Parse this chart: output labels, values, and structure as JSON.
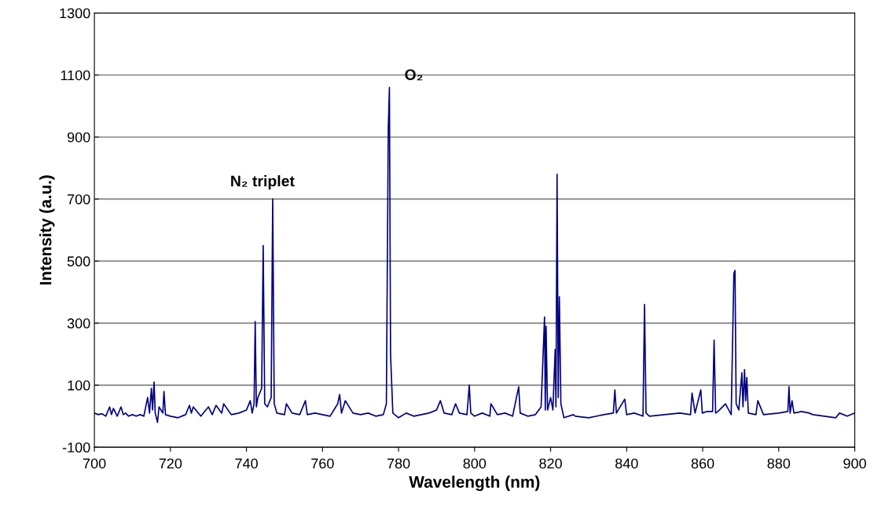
{
  "chart_data": {
    "type": "line",
    "xlabel": "Wavelength (nm)",
    "ylabel": "Intensity (a.u.)",
    "xlim": [
      700,
      900
    ],
    "xticks": [
      700,
      720,
      740,
      760,
      780,
      800,
      820,
      840,
      860,
      880,
      900
    ],
    "ylim": [
      -100,
      1300
    ],
    "yticks": [
      -100,
      100,
      300,
      500,
      700,
      900,
      1100,
      1300
    ],
    "grid": "y",
    "legend": false,
    "marker": "none",
    "line_style": "solid",
    "annotations": [
      "N₂ triplet",
      "O₂"
    ],
    "series": [
      {
        "color": "#000080",
        "x": [
          700,
          701,
          702,
          703,
          704,
          704.5,
          705,
          706,
          707,
          707.6,
          708.2,
          709,
          710,
          711,
          712,
          713,
          714,
          714.5,
          715,
          715.3,
          715.7,
          716,
          716.6,
          717,
          718,
          718.3,
          718.7,
          720,
          722,
          724,
          725,
          725.5,
          726,
          728,
          730,
          731,
          732,
          733.5,
          734,
          736,
          738,
          740,
          741,
          741.5,
          742,
          742.3,
          742.6,
          743,
          744,
          744.4,
          744.8,
          745.5,
          746.5,
          746.9,
          747.3,
          748,
          750,
          750.5,
          752,
          754,
          755.5,
          756,
          758,
          760,
          762,
          764,
          764.5,
          765,
          766,
          768,
          770,
          772,
          774,
          776,
          776.8,
          777.3,
          777.6,
          777.9,
          778.5,
          780,
          782,
          784,
          786,
          788,
          790,
          791,
          792,
          794,
          795,
          796,
          798,
          798.6,
          799,
          800,
          802,
          804,
          804.3,
          806,
          808,
          810,
          811.6,
          812,
          814,
          816,
          817.5,
          818.4,
          818.6,
          818.8,
          819.2,
          820,
          820.6,
          821.2,
          821.4,
          821.7,
          822,
          822.3,
          822.7,
          823.5,
          826,
          826.5,
          830,
          834,
          836.5,
          836.9,
          837.3,
          839.5,
          840,
          842,
          844.3,
          844.7,
          845.1,
          846,
          850,
          854,
          856.8,
          857.2,
          858,
          859.5,
          859.9,
          861,
          862.6,
          863,
          863.4,
          864,
          866,
          867.5,
          868.2,
          868.5,
          868.8,
          869.5,
          870.3,
          870.6,
          871,
          871.3,
          871.6,
          872,
          874,
          874.5,
          876,
          880,
          882.4,
          882.7,
          883,
          883.5,
          884,
          886,
          888,
          889,
          895,
          896,
          898,
          900
        ],
        "values": [
          10,
          5,
          8,
          0,
          30,
          5,
          25,
          0,
          30,
          5,
          10,
          0,
          5,
          0,
          5,
          0,
          60,
          10,
          90,
          20,
          110,
          10,
          -20,
          30,
          10,
          80,
          5,
          0,
          -5,
          5,
          35,
          10,
          30,
          0,
          30,
          5,
          35,
          10,
          40,
          5,
          10,
          20,
          50,
          10,
          40,
          305,
          30,
          60,
          90,
          550,
          40,
          30,
          60,
          700,
          40,
          10,
          5,
          40,
          10,
          5,
          50,
          5,
          10,
          5,
          0,
          40,
          70,
          10,
          50,
          10,
          5,
          10,
          0,
          5,
          40,
          930,
          1060,
          200,
          10,
          -5,
          10,
          0,
          5,
          10,
          20,
          50,
          10,
          5,
          40,
          10,
          5,
          100,
          10,
          0,
          10,
          0,
          40,
          5,
          10,
          0,
          95,
          10,
          0,
          5,
          30,
          320,
          20,
          290,
          20,
          60,
          20,
          215,
          30,
          780,
          60,
          385,
          40,
          -5,
          5,
          0,
          -5,
          5,
          10,
          85,
          10,
          55,
          5,
          10,
          0,
          360,
          10,
          0,
          5,
          10,
          5,
          75,
          10,
          85,
          10,
          15,
          15,
          245,
          10,
          15,
          40,
          5,
          460,
          470,
          40,
          20,
          140,
          30,
          150,
          50,
          125,
          10,
          5,
          50,
          5,
          10,
          15,
          95,
          10,
          50,
          10,
          15,
          10,
          5,
          -5,
          10,
          0,
          10
        ]
      }
    ]
  }
}
